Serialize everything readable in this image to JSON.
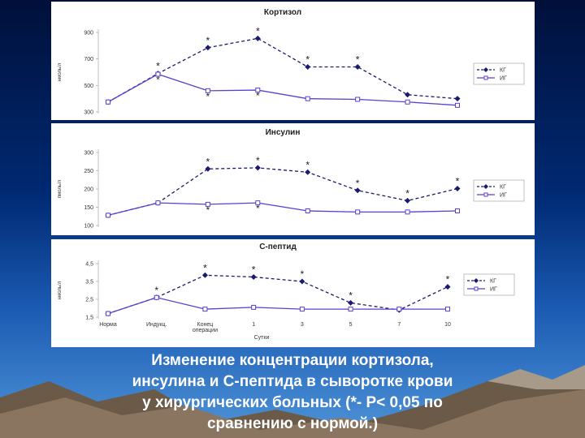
{
  "colors": {
    "kg": "#1a1a6e",
    "ig": "#5b3fd0"
  },
  "chart_data": [
    {
      "type": "line",
      "title": "Кортизол",
      "ylabel": "нмоль/л",
      "ylim": [
        300,
        900
      ],
      "yticks": [
        "300",
        "500",
        "700",
        "900"
      ],
      "x_count": 8,
      "series": [
        {
          "name": "КГ",
          "style": "dashed",
          "values": [
            375,
            590,
            785,
            855,
            640,
            640,
            430,
            400
          ],
          "significant": [
            false,
            true,
            true,
            true,
            true,
            true,
            false,
            false
          ]
        },
        {
          "name": "ИГ",
          "style": "solid",
          "values": [
            375,
            585,
            460,
            465,
            400,
            395,
            375,
            350
          ],
          "significant": [
            false,
            true,
            true,
            true,
            false,
            false,
            false,
            false
          ]
        }
      ],
      "legend": "right"
    },
    {
      "type": "line",
      "title": "Инсулин",
      "ylabel": "пмоль/л",
      "ylim": [
        100,
        300
      ],
      "yticks": [
        "100",
        "150",
        "200",
        "250",
        "300"
      ],
      "x_count": 8,
      "series": [
        {
          "name": "КГ",
          "style": "dashed",
          "values": [
            128,
            162,
            255,
            258,
            246,
            196,
            168,
            201
          ],
          "significant": [
            false,
            false,
            true,
            true,
            true,
            true,
            true,
            true
          ]
        },
        {
          "name": "ИГ",
          "style": "solid",
          "values": [
            128,
            162,
            158,
            162,
            140,
            137,
            137,
            140
          ],
          "significant": [
            false,
            false,
            true,
            true,
            false,
            false,
            false,
            false
          ]
        }
      ],
      "legend": "right"
    },
    {
      "type": "line",
      "title": "С-пептид",
      "ylabel": "нмоль/л",
      "ylim": [
        1.5,
        4.5
      ],
      "yticks": [
        "1,5",
        "2,5",
        "3,5",
        "4,5"
      ],
      "categories": [
        "Норма",
        "Индукц.",
        "Конец операции",
        "1",
        "3",
        "5",
        "7",
        "10"
      ],
      "xlabel": "Сутки",
      "series": [
        {
          "name": "КГ",
          "style": "dashed",
          "values": [
            1.7,
            2.6,
            3.85,
            3.75,
            3.5,
            2.3,
            1.9,
            3.2
          ],
          "significant": [
            false,
            true,
            true,
            true,
            true,
            true,
            false,
            true
          ]
        },
        {
          "name": "ИГ",
          "style": "solid",
          "values": [
            1.7,
            2.6,
            1.95,
            2.05,
            1.95,
            1.95,
            1.95,
            1.95
          ],
          "significant": [
            false,
            false,
            false,
            false,
            false,
            false,
            false,
            false
          ]
        }
      ],
      "legend": "right"
    }
  ],
  "caption": [
    "Изменение концентрации кортизола,",
    "инсулина и С-пептида в сыворотке крови",
    "у хирургических больных (*- Р< 0,05 по",
    "сравнению с нормой.)"
  ]
}
